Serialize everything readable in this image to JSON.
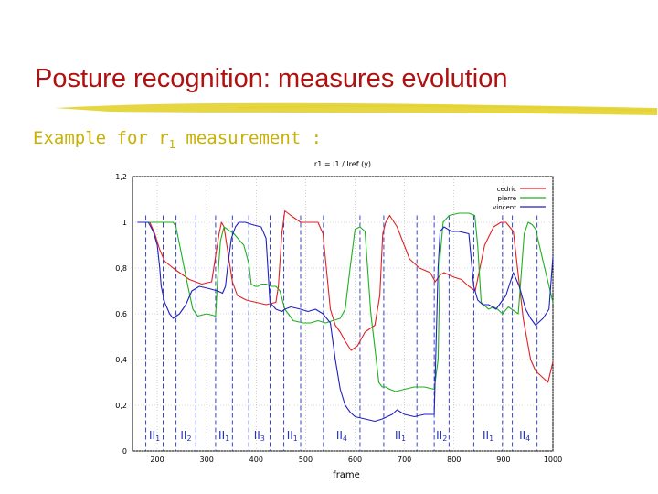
{
  "slide": {
    "title": "Posture recognition: measures evolution",
    "subtitle_main": "Example for r",
    "subtitle_sub": "1",
    "subtitle_rest": " measurement :",
    "title_color": "#b01010",
    "subtitle_color": "#c9b100",
    "brush_color": "#e3d22c"
  },
  "chart_data": {
    "type": "line",
    "title": "r1 = I1 / Iref (y)",
    "xlabel": "frame",
    "ylabel": "",
    "xlim": [
      150,
      1000
    ],
    "ylim": [
      0,
      1.2
    ],
    "x_ticks": [
      200,
      300,
      400,
      500,
      600,
      700,
      800,
      900,
      1000
    ],
    "y_ticks": [
      0,
      0.2,
      0.4,
      0.6,
      0.8,
      1,
      1.2
    ],
    "y_tick_labels": [
      "0",
      "0,2",
      "0,4",
      "0,6",
      "0,8",
      "1",
      "1,2"
    ],
    "grid": true,
    "legend_position": "top-right",
    "series": [
      {
        "name": "cedric",
        "color": "#e02020",
        "x": [
          160,
          185,
          195,
          205,
          215,
          232,
          245,
          265,
          290,
          310,
          325,
          330,
          335,
          352,
          362,
          380,
          400,
          420,
          440,
          445,
          452,
          458,
          470,
          490,
          525,
          535,
          550,
          560,
          570,
          580,
          592,
          605,
          620,
          640,
          650,
          656,
          662,
          670,
          685,
          710,
          730,
          752,
          762,
          772,
          780,
          800,
          815,
          830,
          843,
          862,
          880,
          895,
          905,
          920,
          940,
          955,
          965,
          990,
          1000
        ],
        "y": [
          1.0,
          1.0,
          0.95,
          0.88,
          0.83,
          0.8,
          0.78,
          0.75,
          0.73,
          0.74,
          0.95,
          1.0,
          0.98,
          0.74,
          0.68,
          0.66,
          0.65,
          0.64,
          0.65,
          0.72,
          0.95,
          1.05,
          1.03,
          1.0,
          1.0,
          0.95,
          0.62,
          0.55,
          0.52,
          0.48,
          0.44,
          0.46,
          0.52,
          0.55,
          0.68,
          0.95,
          1.0,
          1.03,
          0.98,
          0.84,
          0.8,
          0.78,
          0.74,
          0.77,
          0.78,
          0.76,
          0.75,
          0.72,
          0.7,
          0.9,
          0.98,
          1.0,
          1.0,
          0.96,
          0.58,
          0.4,
          0.35,
          0.3,
          0.39
        ]
      },
      {
        "name": "pierre",
        "color": "#20b020",
        "x": [
          160,
          215,
          232,
          238,
          250,
          262,
          272,
          282,
          300,
          318,
          322,
          328,
          335,
          355,
          375,
          385,
          390,
          398,
          404,
          410,
          420,
          430,
          440,
          448,
          458,
          475,
          495,
          510,
          525,
          540,
          555,
          570,
          580,
          590,
          600,
          610,
          620,
          632,
          640,
          648,
          655,
          662,
          670,
          682,
          700,
          720,
          740,
          760,
          768,
          772,
          778,
          790,
          810,
          830,
          842,
          848,
          855,
          870,
          880,
          888,
          898,
          910,
          930,
          942,
          950,
          958,
          965,
          980,
          1000
        ],
        "y": [
          1.0,
          1.0,
          1.0,
          0.98,
          0.85,
          0.72,
          0.62,
          0.59,
          0.6,
          0.59,
          0.75,
          0.92,
          0.98,
          0.95,
          0.9,
          0.82,
          0.73,
          0.72,
          0.72,
          0.73,
          0.73,
          0.72,
          0.72,
          0.7,
          0.62,
          0.57,
          0.56,
          0.56,
          0.57,
          0.56,
          0.57,
          0.58,
          0.62,
          0.8,
          0.97,
          0.98,
          0.96,
          0.6,
          0.45,
          0.3,
          0.28,
          0.28,
          0.27,
          0.26,
          0.27,
          0.28,
          0.28,
          0.27,
          0.4,
          0.85,
          1.0,
          1.03,
          1.04,
          1.04,
          1.03,
          0.9,
          0.65,
          0.62,
          0.63,
          0.62,
          0.6,
          0.63,
          0.6,
          0.95,
          1.0,
          0.99,
          0.97,
          0.83,
          0.65
        ]
      },
      {
        "name": "vincent",
        "color": "#2020c0",
        "x": [
          160,
          182,
          192,
          200,
          205,
          208,
          215,
          225,
          232,
          245,
          258,
          270,
          285,
          305,
          322,
          332,
          338,
          342,
          350,
          358,
          365,
          378,
          392,
          410,
          420,
          428,
          440,
          452,
          458,
          470,
          490,
          505,
          520,
          535,
          550,
          560,
          570,
          580,
          590,
          600,
          620,
          640,
          655,
          665,
          675,
          685,
          700,
          720,
          740,
          760,
          768,
          772,
          780,
          795,
          810,
          830,
          840,
          848,
          858,
          870,
          885,
          905,
          920,
          932,
          945,
          955,
          965,
          980,
          992,
          1000
        ],
        "y": [
          1.0,
          1.0,
          0.96,
          0.9,
          0.8,
          0.72,
          0.65,
          0.6,
          0.58,
          0.6,
          0.64,
          0.7,
          0.72,
          0.71,
          0.7,
          0.69,
          0.72,
          0.8,
          0.93,
          0.98,
          1.0,
          1.0,
          0.99,
          0.98,
          0.93,
          0.65,
          0.62,
          0.61,
          0.62,
          0.63,
          0.62,
          0.61,
          0.62,
          0.6,
          0.56,
          0.4,
          0.27,
          0.2,
          0.17,
          0.15,
          0.14,
          0.13,
          0.14,
          0.15,
          0.16,
          0.18,
          0.16,
          0.15,
          0.16,
          0.16,
          0.8,
          0.96,
          0.98,
          0.96,
          0.96,
          0.95,
          0.72,
          0.66,
          0.64,
          0.64,
          0.62,
          0.68,
          0.78,
          0.72,
          0.62,
          0.58,
          0.55,
          0.58,
          0.62,
          0.85
        ]
      }
    ],
    "markers": [
      {
        "label": "II",
        "sub": "1",
        "x1": 177,
        "x2": 212
      },
      {
        "label": "II",
        "sub": "2",
        "x1": 238,
        "x2": 278
      },
      {
        "label": "II",
        "sub": "1",
        "x1": 318,
        "x2": 352
      },
      {
        "label": "II",
        "sub": "3",
        "x1": 385,
        "x2": 428
      },
      {
        "label": "II",
        "sub": "1",
        "x1": 456,
        "x2": 490
      },
      {
        "label": "II",
        "sub": "4",
        "x1": 536,
        "x2": 610
      },
      {
        "label": "II",
        "sub": "1",
        "x1": 658,
        "x2": 725
      },
      {
        "label": "II",
        "sub": "2",
        "x1": 760,
        "x2": 790
      },
      {
        "label": "II",
        "sub": "1",
        "x1": 840,
        "x2": 898
      },
      {
        "label": "II",
        "sub": "4",
        "x1": 918,
        "x2": 968
      }
    ]
  }
}
